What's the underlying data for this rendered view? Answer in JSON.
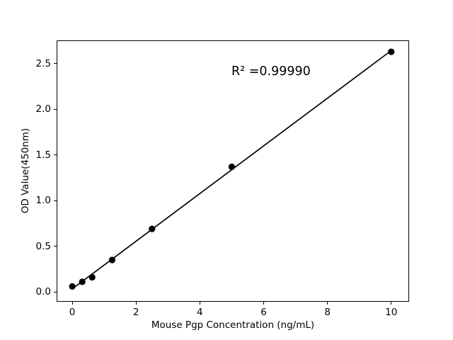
{
  "chart_data": {
    "type": "scatter",
    "title": "",
    "xlabel": "Mouse Pgp Concentration (ng/mL)",
    "ylabel": "OD Value(450nm)",
    "annotation": "R² =0.99990",
    "x": [
      0,
      0.313,
      0.625,
      1.25,
      2.5,
      5,
      10
    ],
    "y": [
      0.06,
      0.11,
      0.16,
      0.35,
      0.69,
      1.37,
      2.63
    ],
    "trendline": {
      "type": "linear_fit",
      "x_start": 0,
      "x_end": 10
    },
    "x_ticks": [
      0,
      2,
      4,
      6,
      8,
      10
    ],
    "x_tick_labels": [
      "0",
      "2",
      "4",
      "6",
      "8",
      "10"
    ],
    "y_ticks": [
      0.0,
      0.5,
      1.0,
      1.5,
      2.0,
      2.5
    ],
    "y_tick_labels": [
      "0.0",
      "0.5",
      "1.0",
      "1.5",
      "2.0",
      "2.5"
    ],
    "xlim": [
      -0.49,
      10.56
    ],
    "ylim": [
      -0.108,
      2.755
    ],
    "grid": false,
    "legend": "none",
    "marker_color": "#000000",
    "line_color": "#000000",
    "background_color": "#ffffff"
  }
}
